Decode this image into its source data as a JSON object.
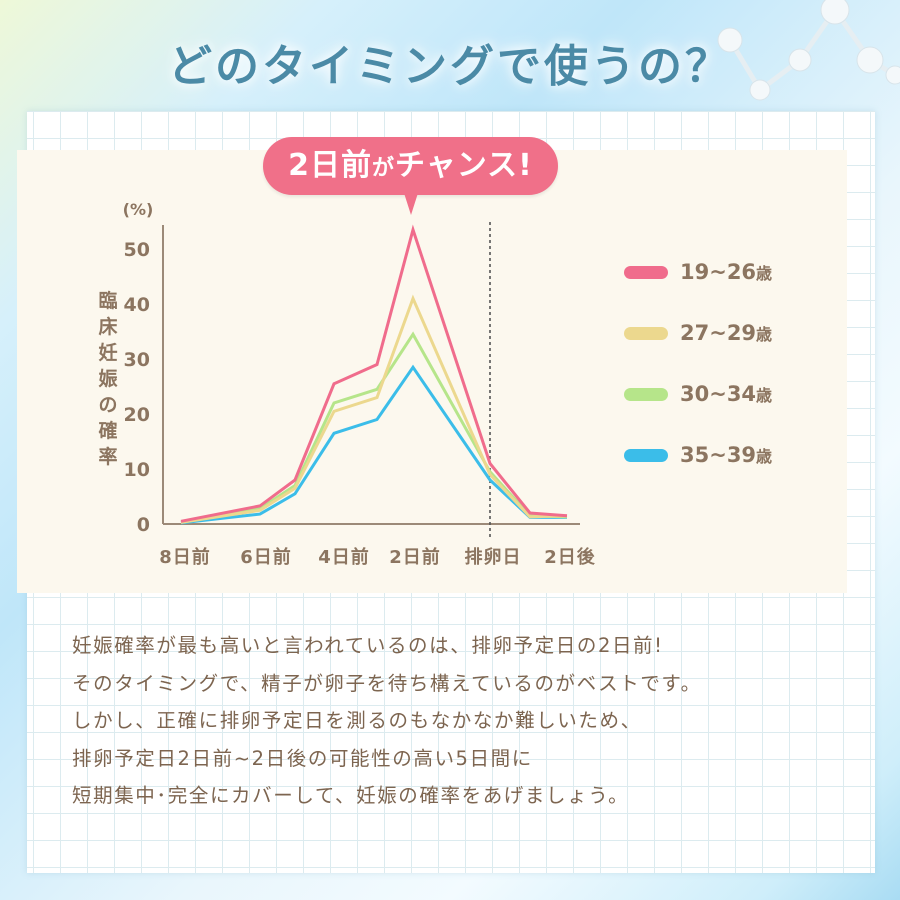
{
  "title": "どのタイミングで使うの？",
  "callout": {
    "num": "2",
    "main": "日前",
    "particle": "が",
    "rest": "チャンス!"
  },
  "chart_data": {
    "type": "line",
    "title": "",
    "xlabel": "",
    "ylabel": "臨床妊娠の確率",
    "yunit": "(%)",
    "ylim": [
      0,
      55
    ],
    "yticks": [
      0,
      10,
      20,
      30,
      40,
      50
    ],
    "x_tick_labels": [
      "8日前",
      "6日前",
      "4日前",
      "2日前",
      "排卵日",
      "2日後"
    ],
    "x_points": [
      "8日前",
      "6日前",
      "5日前",
      "4日前",
      "3日前",
      "2日前",
      "排卵日",
      "1日後",
      "2日後"
    ],
    "ovulation_marker": "排卵日",
    "legend_position": "right",
    "grid": false,
    "series": [
      {
        "name": "19~26歳",
        "color": "#f06c8c",
        "values": [
          0.5,
          3.3,
          8,
          25.5,
          29,
          53.5,
          11,
          2,
          1.5
        ]
      },
      {
        "name": "27~29歳",
        "color": "#ecd88e",
        "values": [
          0.3,
          2.5,
          6.5,
          20.5,
          23,
          41,
          9,
          1.3,
          1.5
        ]
      },
      {
        "name": "30~34歳",
        "color": "#b6e58a",
        "values": [
          0.3,
          2.8,
          7,
          22,
          24.5,
          34.5,
          9.5,
          1.5,
          1.3
        ]
      },
      {
        "name": "35~39歳",
        "color": "#3bbde9",
        "values": [
          0.2,
          1.8,
          5.5,
          16.5,
          19,
          28.5,
          8,
          1.2,
          1.2
        ]
      }
    ]
  },
  "legend": [
    {
      "range": "19~26",
      "unit": "歳",
      "color": "#f06c8c"
    },
    {
      "range": "27~29",
      "unit": "歳",
      "color": "#ecd88e"
    },
    {
      "range": "30~34",
      "unit": "歳",
      "color": "#b6e58a"
    },
    {
      "range": "35~39",
      "unit": "歳",
      "color": "#3bbde9"
    }
  ],
  "yaxis_vertical_label": [
    "臨",
    "床",
    "妊",
    "娠",
    "の",
    "確",
    "率"
  ],
  "body": [
    "妊娠確率が最も高いと言われているのは、排卵予定日の2日前!",
    "そのタイミングで、精子が卵子を待ち構えているのがベストです。",
    "しかし、正確に排卵予定日を測るのもなかなか難しいため、",
    "排卵予定日2日前~2日後の可能性の高い5日間に",
    "短期集中･完全にカバーして、妊娠の確率をあげましょう。"
  ]
}
